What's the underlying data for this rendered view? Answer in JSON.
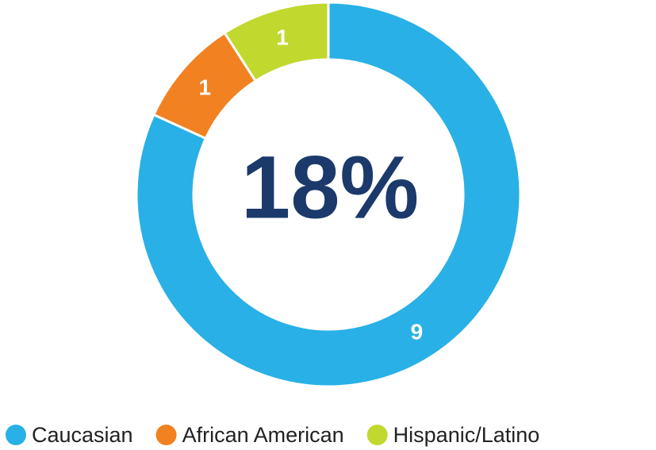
{
  "chart_data": {
    "type": "donut",
    "center_label": "18%",
    "categories": [
      "Caucasian",
      "African American",
      "Hispanic/Latino"
    ],
    "values": [
      9,
      1,
      1
    ],
    "colors": [
      "#29b0e6",
      "#f28122",
      "#c1d82f"
    ],
    "legend": "bottom"
  }
}
